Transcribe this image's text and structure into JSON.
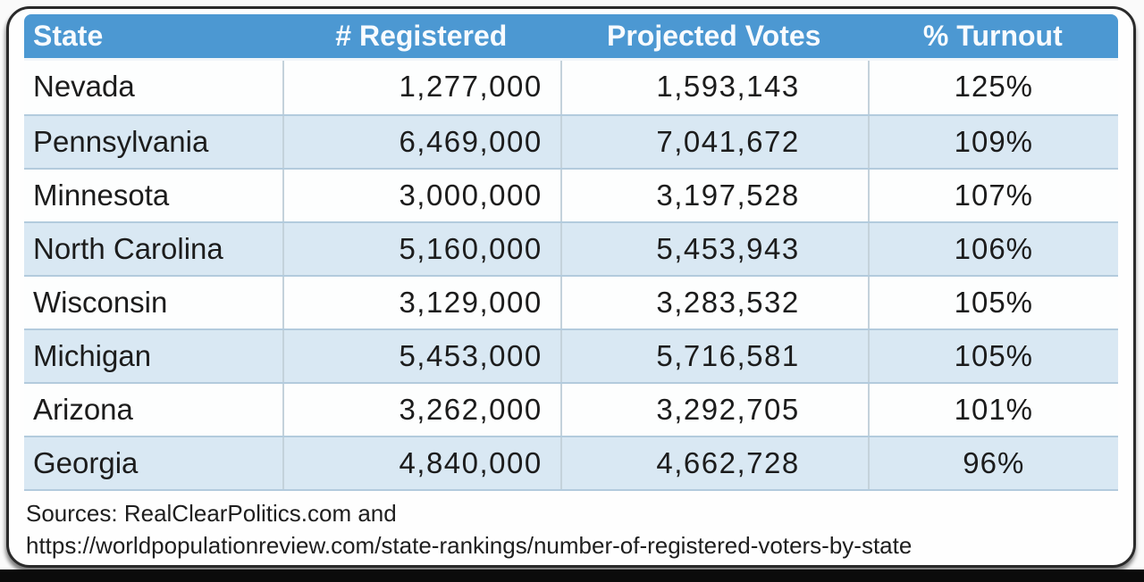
{
  "chart_data": {
    "type": "table",
    "columns": [
      "State",
      "# Registered",
      "Projected Votes",
      "% Turnout"
    ],
    "rows": [
      [
        "Nevada",
        "1,277,000",
        "1,593,143",
        "125%"
      ],
      [
        "Pennsylvania",
        "6,469,000",
        "7,041,672",
        "109%"
      ],
      [
        "Minnesota",
        "3,000,000",
        "3,197,528",
        "107%"
      ],
      [
        "North Carolina",
        "5,160,000",
        "5,453,943",
        "106%"
      ],
      [
        "Wisconsin",
        "3,129,000",
        "3,283,532",
        "105%"
      ],
      [
        "Michigan",
        "5,453,000",
        "5,716,581",
        "105%"
      ],
      [
        "Arizona",
        "3,262,000",
        "3,292,705",
        "101%"
      ],
      [
        "Georgia",
        "4,840,000",
        "4,662,728",
        "96%"
      ]
    ],
    "numeric": {
      "registered": [
        1277000,
        6469000,
        3000000,
        5160000,
        3129000,
        5453000,
        3262000,
        4840000
      ],
      "projected_votes": [
        1593143,
        7041672,
        3197528,
        5453943,
        3283532,
        5716581,
        3292705,
        4662728
      ],
      "turnout_pct": [
        125,
        109,
        107,
        106,
        105,
        105,
        101,
        96
      ]
    },
    "legend_position": "none",
    "grid": true
  },
  "footer": {
    "line1": "Sources: RealClearPolitics.com and",
    "line2": "https://worldpopulationreview.com/state-rankings/number-of-registered-voters-by-state"
  },
  "colors": {
    "header_bg": "#4c98d2",
    "header_text": "#f8fbfe",
    "row_bg": "#fdfefe",
    "row_alt_bg": "#d9e8f3",
    "grid_line": "#b3cbdd",
    "cell_text": "#1c1c1c",
    "card_border": "#2a2a2a",
    "bottom_strip": "#0b0b0b"
  }
}
